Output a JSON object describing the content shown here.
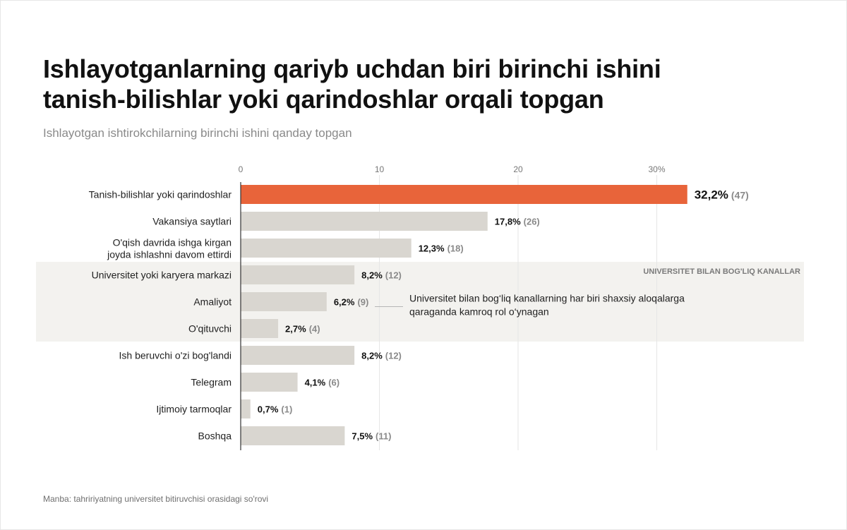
{
  "title_lines": [
    "Ishlayotganlarning qariyb uchdan biri birinchi ishini",
    "tanish-bilishlar yoki qarindoshlar orqali topgan"
  ],
  "subtitle": "Ishlayotgan ishtirokchilarning birinchi ishini qanday topgan",
  "source": "Manba: tahririyatning universitet bitiruvchisi orasidagi so'rovi",
  "colors": {
    "highlight": "#e8643a",
    "bar": "#d9d6d0",
    "band": "#f3f2ef",
    "grid": "#e6e6e6",
    "axis": "#333333"
  },
  "chart_data": {
    "type": "bar",
    "orientation": "horizontal",
    "title": "Ishlayotganlarning qariyb uchdan biri birinchi ishini tanish-bilishlar yoki qarindoshlar orqali topgan",
    "subtitle": "Ishlayotgan ishtirokchilarning birinchi ishini qanday topgan",
    "xlim": [
      0,
      38
    ],
    "ticks": [
      0,
      10,
      20,
      30
    ],
    "tick_labels": [
      "0",
      "10",
      "20",
      "30%"
    ],
    "grid": true,
    "categories": [
      [
        "Tanish-bilishlar yoki qarindoshlar"
      ],
      [
        "Vakansiya saytlari"
      ],
      [
        "O'qish davrida ishga kirgan",
        "joyda ishlashni davom ettirdi"
      ],
      [
        "Universitet yoki karyera markazi"
      ],
      [
        "Amaliyot"
      ],
      [
        "O'qituvchi"
      ],
      [
        "Ish beruvchi o'zi bog'landi"
      ],
      [
        "Telegram"
      ],
      [
        "Ijtimoiy tarmoqlar"
      ],
      [
        "Boshqa"
      ]
    ],
    "values": [
      32.2,
      17.8,
      12.3,
      8.2,
      6.2,
      2.7,
      8.2,
      4.1,
      0.7,
      7.5
    ],
    "value_labels": [
      "32,2%",
      "17,8%",
      "12,3%",
      "8,2%",
      "6,2%",
      "2,7%",
      "8,2%",
      "4,1%",
      "0,7%",
      "7,5%"
    ],
    "counts": [
      "(47)",
      "(26)",
      "(18)",
      "(12)",
      "(9)",
      "(4)",
      "(12)",
      "(6)",
      "(1)",
      "(11)"
    ],
    "highlight_index": 0,
    "group": {
      "label": "UNIVERSITET BILAN BOG'LIQ KANALLAR",
      "rows": [
        3,
        4,
        5
      ]
    },
    "annotation": {
      "lines": [
        "Universitet bilan bog‘liq kanallarning har biri shaxsiy aloqalarga",
        "qaraganda kamroq rol o‘ynagan"
      ],
      "row": 4
    }
  }
}
